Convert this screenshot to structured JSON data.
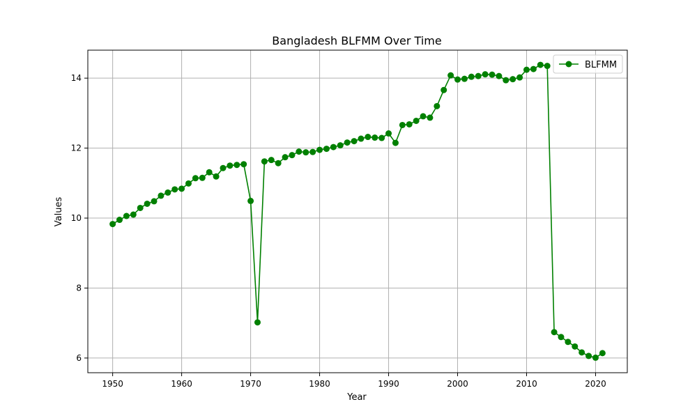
{
  "chart_data": {
    "type": "line",
    "title": "Bangladesh BLFMM Over Time",
    "xlabel": "Year",
    "ylabel": "Values",
    "xlim": [
      1946.4,
      2024.6
    ],
    "ylim": [
      5.58,
      14.8
    ],
    "xticks": [
      1950,
      1960,
      1970,
      1980,
      1990,
      2000,
      2010,
      2020
    ],
    "yticks": [
      6,
      8,
      10,
      12,
      14
    ],
    "grid": true,
    "legend_position": "top-right",
    "series": [
      {
        "name": "BLFMM",
        "color": "#008000",
        "marker": "circle",
        "x": [
          1950,
          1951,
          1952,
          1953,
          1954,
          1955,
          1956,
          1957,
          1958,
          1959,
          1960,
          1961,
          1962,
          1963,
          1964,
          1965,
          1966,
          1967,
          1968,
          1969,
          1970,
          1971,
          1972,
          1973,
          1974,
          1975,
          1976,
          1977,
          1978,
          1979,
          1980,
          1981,
          1982,
          1983,
          1984,
          1985,
          1986,
          1987,
          1988,
          1989,
          1990,
          1991,
          1992,
          1993,
          1994,
          1995,
          1996,
          1997,
          1998,
          1999,
          2000,
          2001,
          2002,
          2003,
          2004,
          2005,
          2006,
          2007,
          2008,
          2009,
          2010,
          2011,
          2012,
          2013,
          2014,
          2015,
          2016,
          2017,
          2018,
          2019,
          2020,
          2021
        ],
        "y": [
          9.83,
          9.95,
          10.06,
          10.1,
          10.29,
          10.41,
          10.48,
          10.64,
          10.73,
          10.82,
          10.84,
          10.99,
          11.14,
          11.15,
          11.31,
          11.19,
          11.43,
          11.5,
          11.52,
          11.54,
          10.49,
          7.02,
          11.62,
          11.66,
          11.57,
          11.74,
          11.8,
          11.9,
          11.88,
          11.89,
          11.95,
          11.98,
          12.03,
          12.08,
          12.16,
          12.2,
          12.27,
          12.32,
          12.3,
          12.29,
          12.42,
          12.15,
          12.66,
          12.68,
          12.78,
          12.91,
          12.87,
          13.2,
          13.66,
          14.08,
          13.96,
          13.98,
          14.04,
          14.06,
          14.11,
          14.1,
          14.06,
          13.94,
          13.97,
          14.02,
          14.24,
          14.26,
          14.38,
          14.35,
          6.74,
          6.6,
          6.46,
          6.33,
          6.16,
          6.06,
          6.01,
          6.14
        ]
      }
    ]
  }
}
